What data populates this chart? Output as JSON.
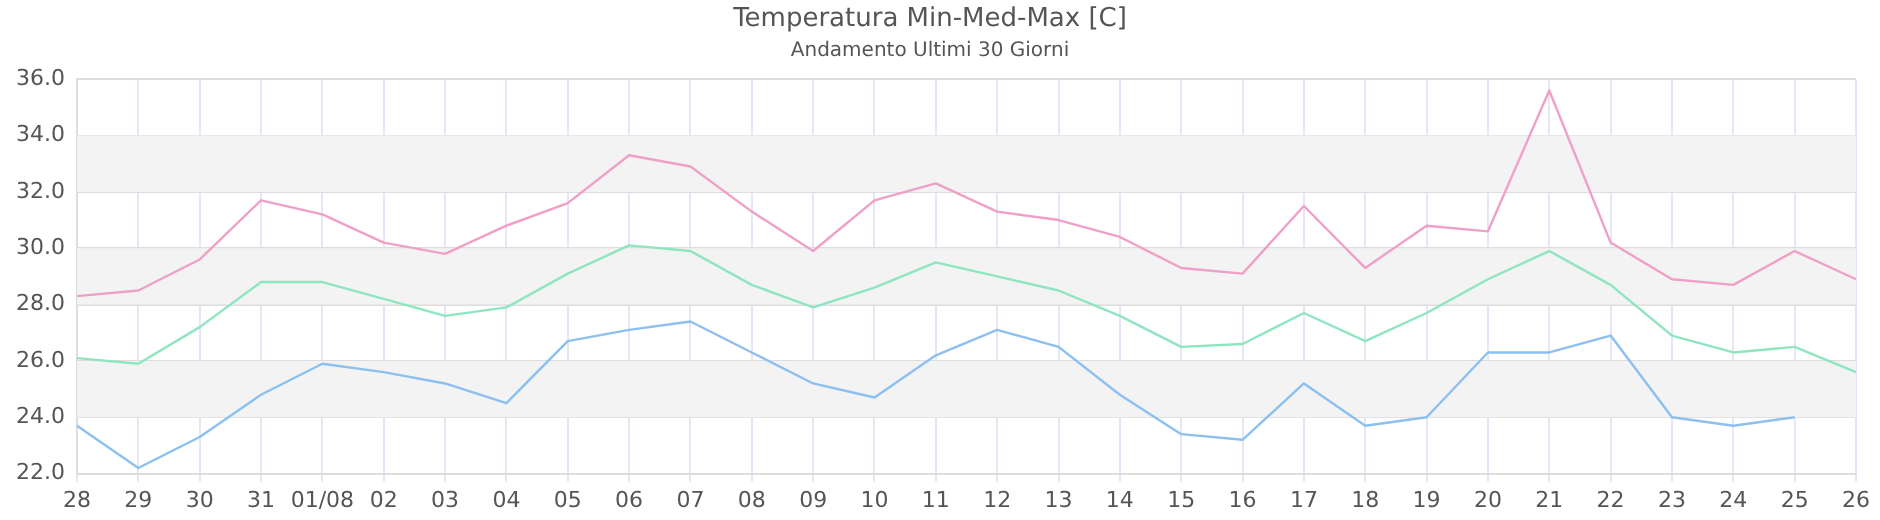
{
  "chart_data": {
    "type": "line",
    "title": "Temperatura Min-Med-Max [C]",
    "subtitle": "Andamento Ultimi 30 Giorni",
    "categories": [
      "28",
      "29",
      "30",
      "31",
      "01/08",
      "02",
      "03",
      "04",
      "05",
      "06",
      "07",
      "08",
      "09",
      "10",
      "11",
      "12",
      "13",
      "14",
      "15",
      "16",
      "17",
      "18",
      "19",
      "20",
      "21",
      "22",
      "23",
      "24",
      "25",
      "26"
    ],
    "series": [
      {
        "color": "#f0a0c8",
        "values": [
          28.3,
          28.5,
          29.6,
          31.7,
          31.2,
          30.2,
          29.8,
          30.8,
          31.6,
          33.3,
          32.9,
          31.3,
          29.9,
          31.7,
          32.3,
          31.3,
          31.0,
          30.4,
          29.3,
          29.1,
          31.5,
          29.3,
          30.8,
          30.6,
          35.6,
          30.2,
          28.9,
          28.7,
          29.9,
          28.9
        ]
      },
      {
        "color": "#8ee6c0",
        "values": [
          26.1,
          25.9,
          27.2,
          28.8,
          28.8,
          28.2,
          27.6,
          27.9,
          29.1,
          30.1,
          29.9,
          28.7,
          27.9,
          28.6,
          29.5,
          29.0,
          28.5,
          27.6,
          26.5,
          26.6,
          27.7,
          26.7,
          27.7,
          28.9,
          29.9,
          28.7,
          26.9,
          26.3,
          26.5,
          25.6
        ]
      },
      {
        "color": "#8cc0f0",
        "values": [
          23.7,
          22.2,
          23.3,
          24.8,
          25.9,
          25.6,
          25.2,
          24.5,
          26.7,
          27.1,
          27.4,
          26.3,
          25.2,
          24.7,
          26.2,
          27.1,
          26.5,
          24.8,
          23.4,
          23.2,
          25.2,
          23.7,
          24.0,
          26.3,
          26.3,
          26.9,
          24.0,
          23.7,
          24.0,
          null
        ]
      }
    ],
    "ylim": [
      22,
      36
    ],
    "yticks": [
      {
        "value": 22,
        "label": "22.0"
      },
      {
        "value": 24,
        "label": "24.0"
      },
      {
        "value": 26,
        "label": "26.0"
      },
      {
        "value": 28,
        "label": "28.0"
      },
      {
        "value": 30,
        "label": "30.0"
      },
      {
        "value": 32,
        "label": "32.0"
      },
      {
        "value": 34,
        "label": "34.0"
      },
      {
        "value": 36,
        "label": "36.0"
      }
    ],
    "bands": [
      {
        "axis": "y",
        "from": 24,
        "to": 26,
        "color": "#f3f3f3"
      },
      {
        "axis": "y",
        "from": 28,
        "to": 30,
        "color": "#f3f3f3"
      },
      {
        "axis": "y",
        "from": 32,
        "to": 34,
        "color": "#f3f3f3"
      }
    ],
    "grid": true,
    "legend": false,
    "marker": "none",
    "line_style": "solid"
  }
}
